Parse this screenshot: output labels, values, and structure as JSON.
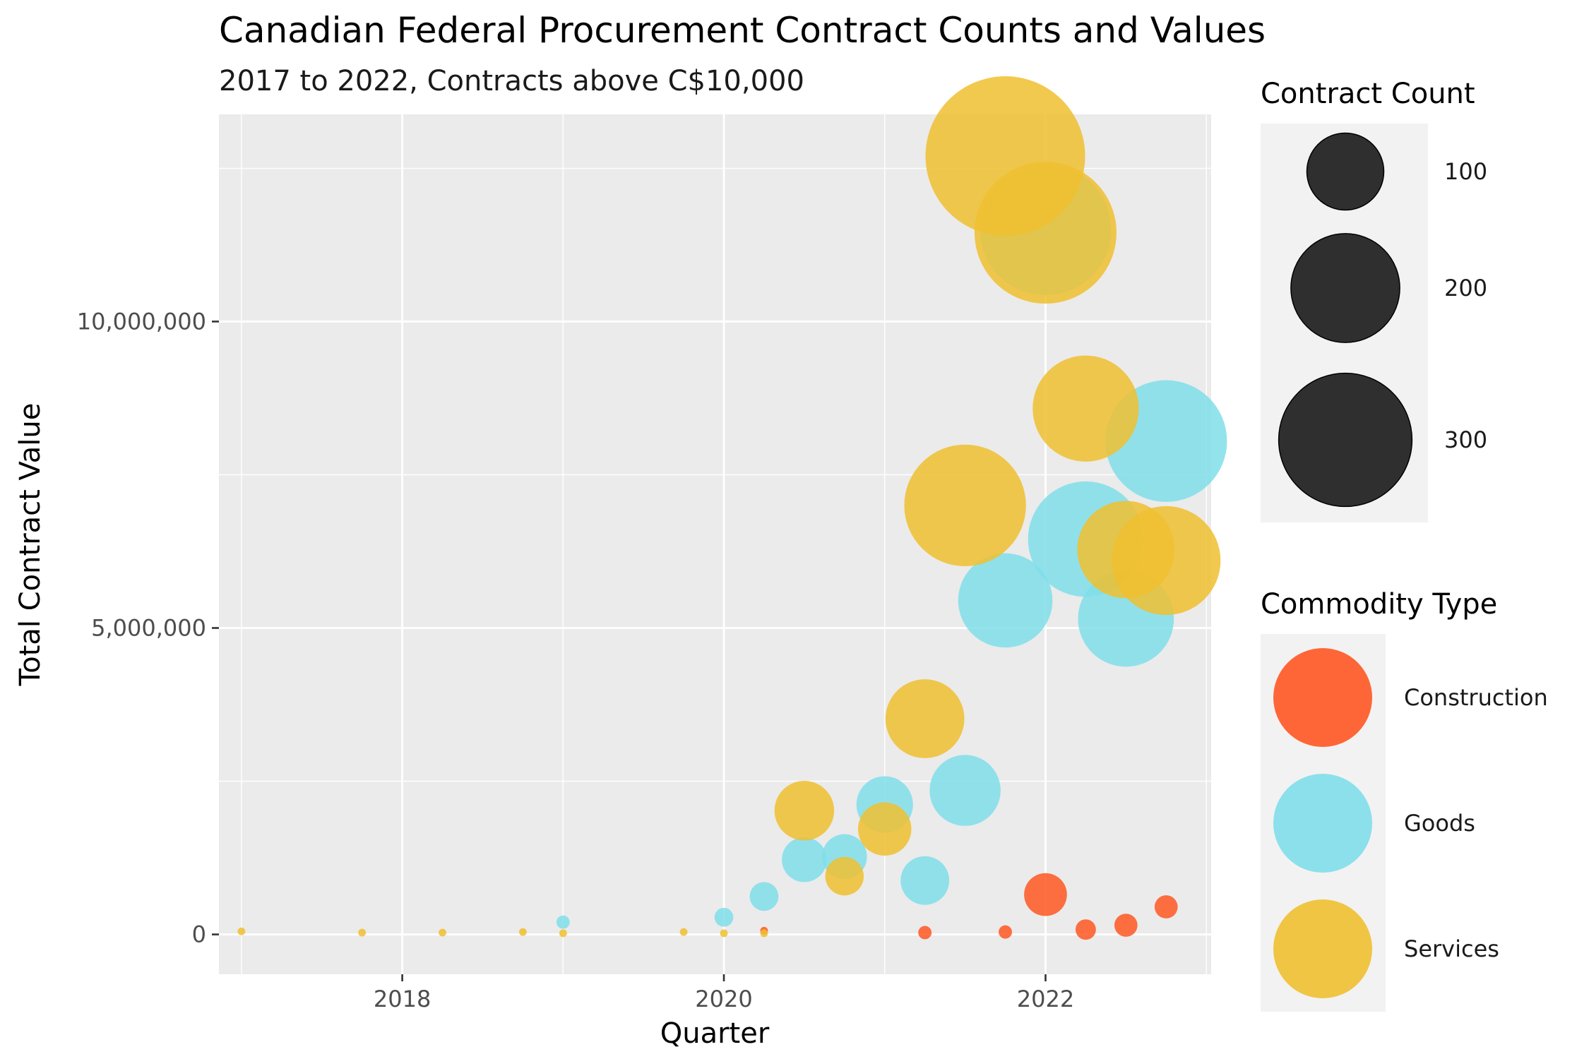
{
  "chart_data": {
    "type": "scatter",
    "title": "Canadian Federal Procurement Contract Counts and Values",
    "subtitle": "2017 to 2022, Contracts above C$10,000",
    "xlabel": "Quarter",
    "ylabel": "Total Contract Value",
    "xlim": [
      2016.86,
      2023.03
    ],
    "ylim": [
      -650000,
      13380000
    ],
    "x_ticks": [
      2018,
      2020,
      2022
    ],
    "x_tick_labels": [
      "2018",
      "2020",
      "2022"
    ],
    "y_ticks": [
      0,
      5000000,
      10000000
    ],
    "y_tick_labels": [
      "0",
      "5,000,000",
      "10,000,000"
    ],
    "grid": true,
    "legend_position": "right",
    "size_legend": {
      "title": "Contract Count",
      "breaks": [
        100,
        200,
        300
      ],
      "labels": [
        "100",
        "200",
        "300"
      ]
    },
    "color_legend": {
      "title": "Commodity Type",
      "entries": [
        "Construction",
        "Goods",
        "Services"
      ]
    },
    "colors": {
      "Construction": "#FF5722",
      "Goods": "#80DEEA",
      "Services": "#F0C030",
      "legend_key": "#1A1A1A",
      "panel_background": "#EBEBEB",
      "legend_background": "#F2F2F2"
    },
    "series": [
      {
        "name": "Construction",
        "points": [
          {
            "x": 2020.25,
            "y": 60000,
            "count": 1
          },
          {
            "x": 2021.25,
            "y": 30000,
            "count": 3
          },
          {
            "x": 2021.75,
            "y": 40000,
            "count": 3
          },
          {
            "x": 2022.0,
            "y": 650000,
            "count": 31
          },
          {
            "x": 2022.25,
            "y": 80000,
            "count": 7
          },
          {
            "x": 2022.5,
            "y": 150000,
            "count": 9
          },
          {
            "x": 2022.75,
            "y": 450000,
            "count": 9
          }
        ]
      },
      {
        "name": "Goods",
        "points": [
          {
            "x": 2019.0,
            "y": 200000,
            "count": 3
          },
          {
            "x": 2020.0,
            "y": 280000,
            "count": 6
          },
          {
            "x": 2020.25,
            "y": 620000,
            "count": 14
          },
          {
            "x": 2020.5,
            "y": 1220000,
            "count": 34
          },
          {
            "x": 2020.75,
            "y": 1270000,
            "count": 34
          },
          {
            "x": 2021.0,
            "y": 2120000,
            "count": 54
          },
          {
            "x": 2021.25,
            "y": 880000,
            "count": 40
          },
          {
            "x": 2021.5,
            "y": 2350000,
            "count": 85
          },
          {
            "x": 2021.75,
            "y": 5450000,
            "count": 150
          },
          {
            "x": 2022.0,
            "y": 11500000,
            "count": 290
          },
          {
            "x": 2022.25,
            "y": 6450000,
            "count": 225
          },
          {
            "x": 2022.5,
            "y": 5150000,
            "count": 155
          },
          {
            "x": 2022.75,
            "y": 8050000,
            "count": 250
          }
        ]
      },
      {
        "name": "Services",
        "points": [
          {
            "x": 2017.0,
            "y": 50000,
            "count": 1
          },
          {
            "x": 2017.75,
            "y": 30000,
            "count": 1
          },
          {
            "x": 2018.25,
            "y": 30000,
            "count": 1
          },
          {
            "x": 2018.75,
            "y": 40000,
            "count": 1
          },
          {
            "x": 2019.0,
            "y": 20000,
            "count": 1
          },
          {
            "x": 2019.75,
            "y": 40000,
            "count": 1
          },
          {
            "x": 2020.0,
            "y": 20000,
            "count": 1
          },
          {
            "x": 2020.25,
            "y": 20000,
            "count": 1
          },
          {
            "x": 2020.5,
            "y": 2020000,
            "count": 60
          },
          {
            "x": 2020.75,
            "y": 950000,
            "count": 25
          },
          {
            "x": 2021.0,
            "y": 1720000,
            "count": 48
          },
          {
            "x": 2021.25,
            "y": 3520000,
            "count": 105
          },
          {
            "x": 2021.5,
            "y": 7000000,
            "count": 250
          },
          {
            "x": 2021.75,
            "y": 12700000,
            "count": 430
          },
          {
            "x": 2022.0,
            "y": 11450000,
            "count": 340
          },
          {
            "x": 2022.25,
            "y": 8580000,
            "count": 190
          },
          {
            "x": 2022.5,
            "y": 6280000,
            "count": 160
          },
          {
            "x": 2022.75,
            "y": 6100000,
            "count": 200
          }
        ]
      }
    ]
  }
}
